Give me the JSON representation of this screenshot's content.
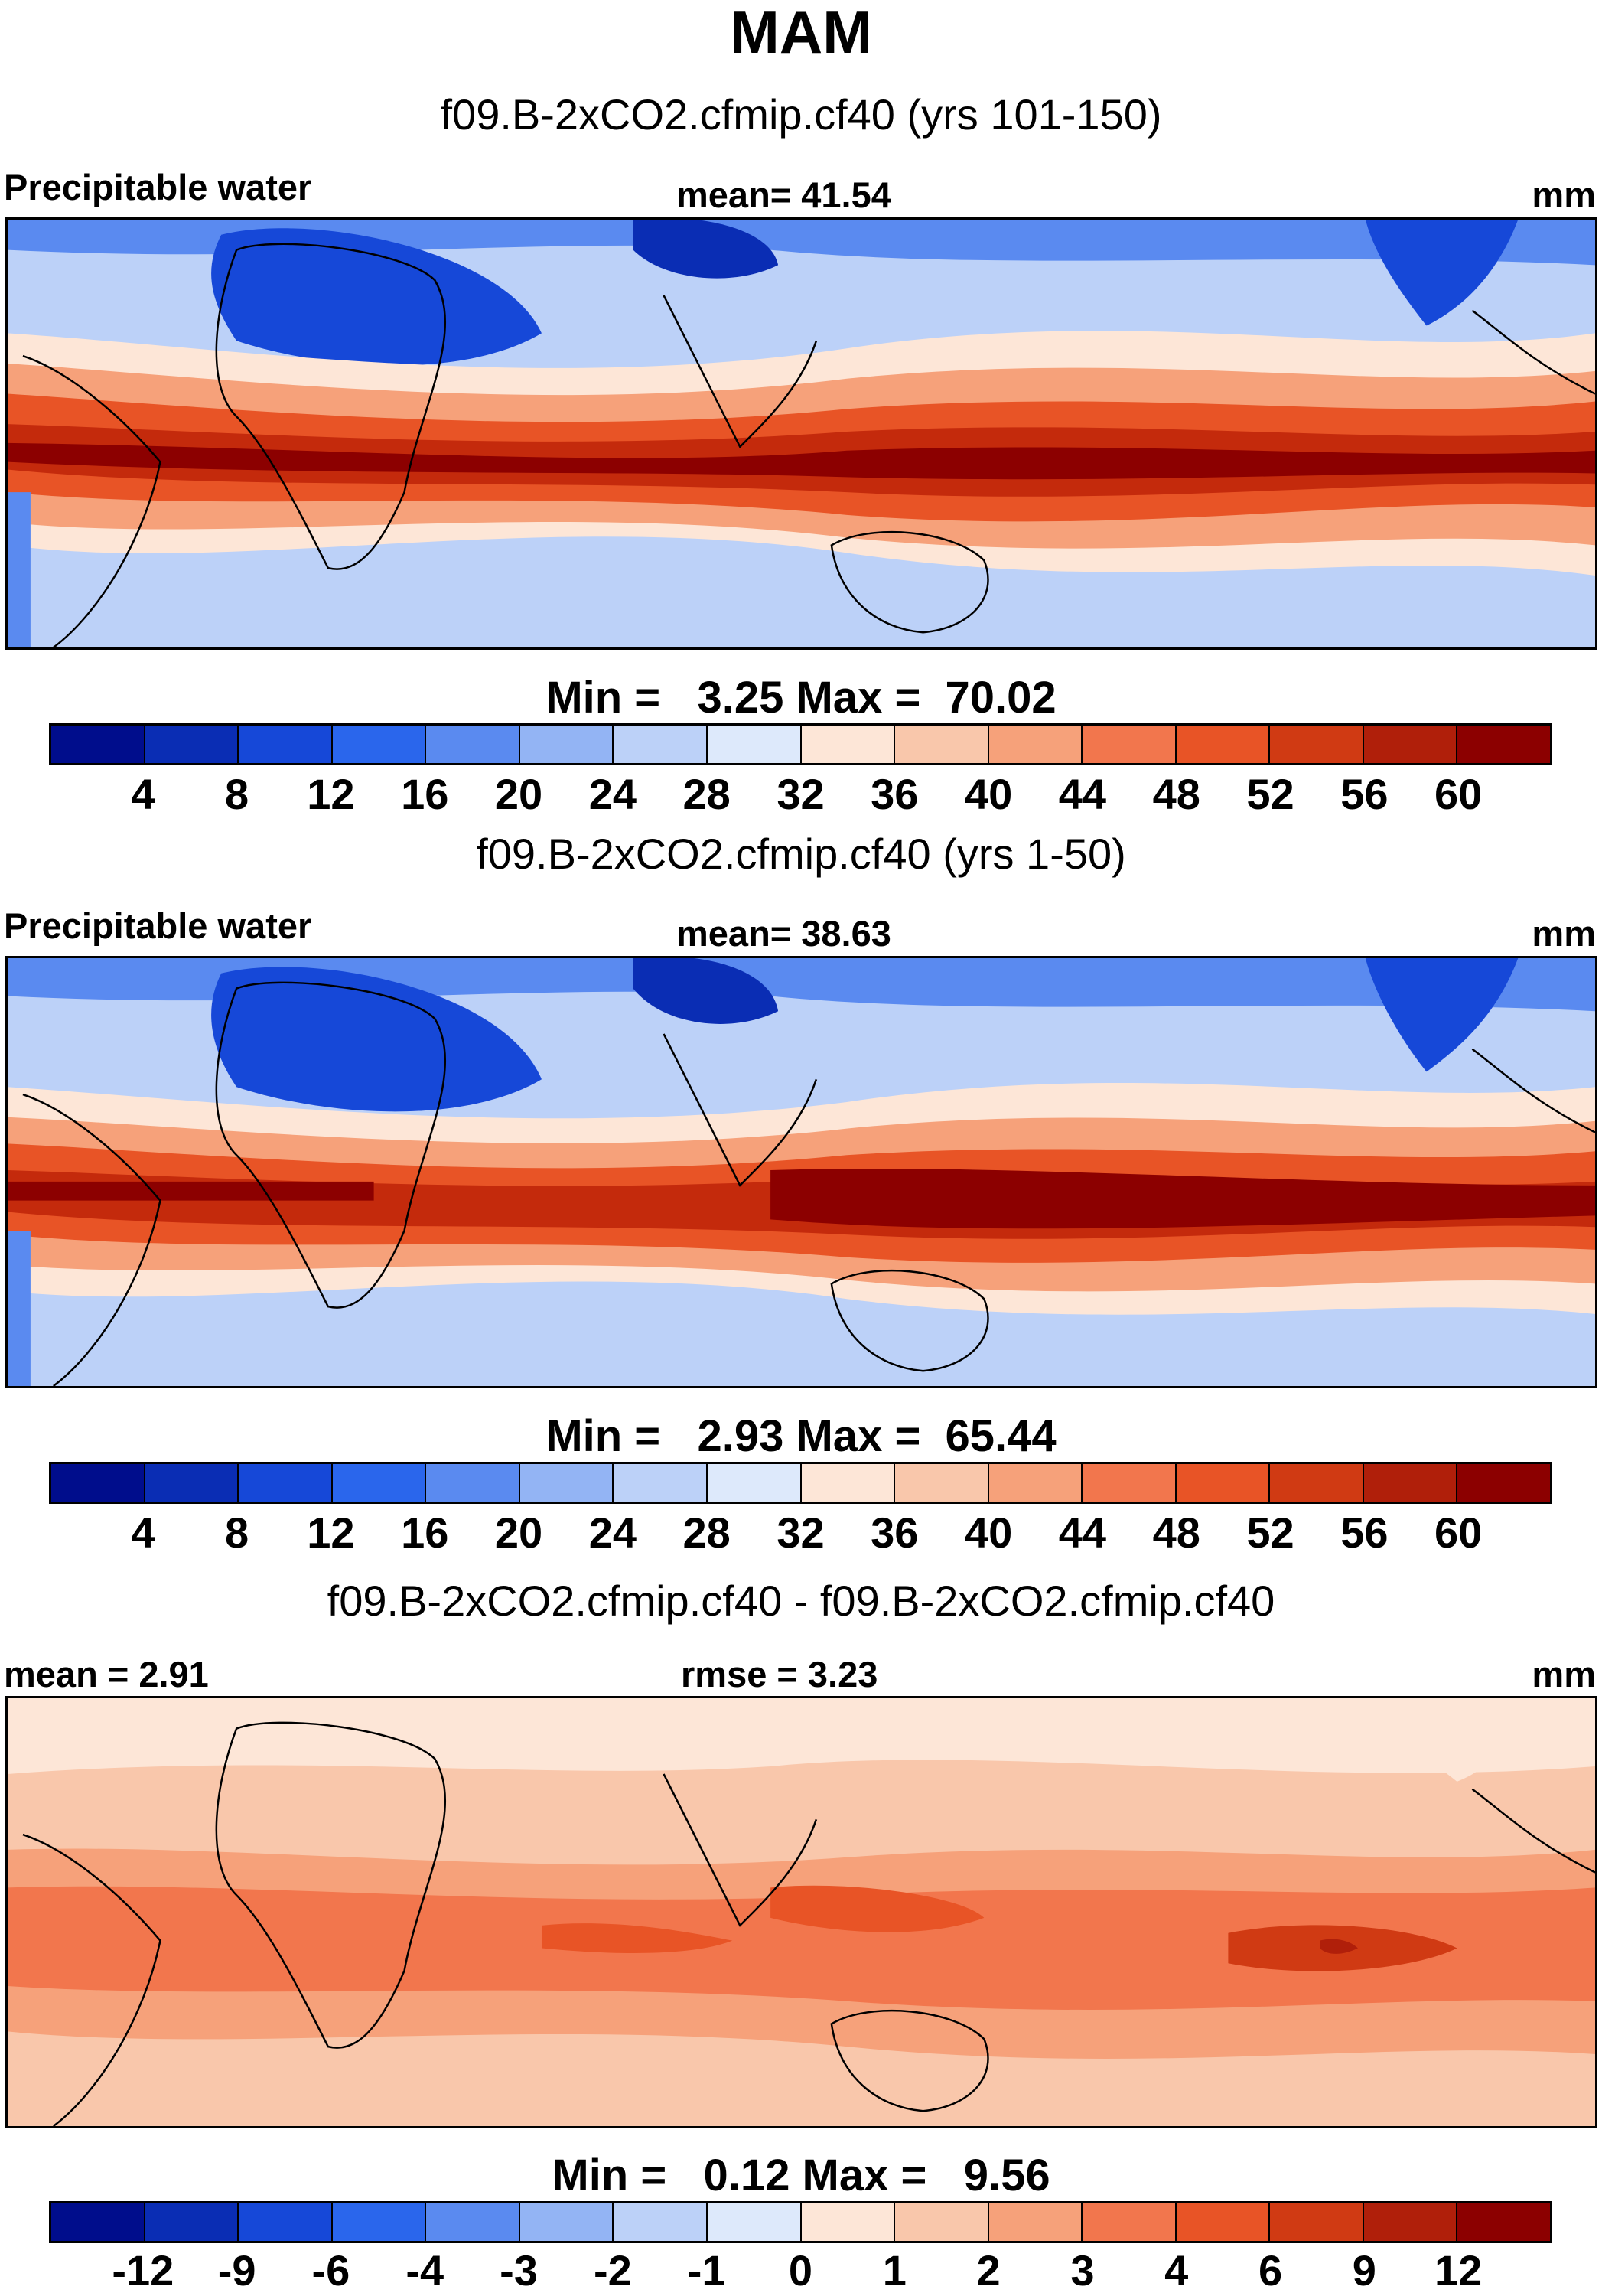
{
  "main_title": "MAM",
  "panels": [
    {
      "title": "f09.B-2xCO2.cfmip.cf40 (yrs 101-150)",
      "left_label": "Precipitable water",
      "center_label": "mean=  41.54",
      "right_label": "mm",
      "minmax": "Min =   3.25 Max =  70.02",
      "colorbar_labels": [
        "4",
        "8",
        "12",
        "16",
        "20",
        "24",
        "28",
        "32",
        "36",
        "40",
        "44",
        "48",
        "52",
        "56",
        "60"
      ]
    },
    {
      "title": "f09.B-2xCO2.cfmip.cf40 (yrs 1-50)",
      "left_label": "Precipitable water",
      "center_label": "mean=  38.63",
      "right_label": "mm",
      "minmax": "Min =   2.93 Max =  65.44",
      "colorbar_labels": [
        "4",
        "8",
        "12",
        "16",
        "20",
        "24",
        "28",
        "32",
        "36",
        "40",
        "44",
        "48",
        "52",
        "56",
        "60"
      ]
    },
    {
      "title": "f09.B-2xCO2.cfmip.cf40 - f09.B-2xCO2.cfmip.cf40",
      "left_label": "mean =   2.91",
      "center_label": "rmse =   3.23",
      "right_label": "mm",
      "minmax": "Min =   0.12 Max =   9.56",
      "colorbar_labels": [
        "-12",
        "-9",
        "-6",
        "-4",
        "-3",
        "-2",
        "-1",
        "0",
        "1",
        "2",
        "3",
        "4",
        "6",
        "9",
        "12"
      ]
    }
  ],
  "colorbar_colors": [
    "#000d8c",
    "#0a2db4",
    "#1648d8",
    "#2a66ec",
    "#5a8af0",
    "#93b4f4",
    "#bcd1f8",
    "#dde9fb",
    "#fde6d7",
    "#f9c7ab",
    "#f6a17a",
    "#f2764d",
    "#e85426",
    "#d03a13",
    "#b01f0a",
    "#8c0000"
  ],
  "map_colors": {
    "deep_red": "#8c0000",
    "red": "#c42a0c",
    "orange_red": "#e85426",
    "orange": "#f6a17a",
    "peach": "#f9c7ab",
    "cream": "#fde6d7",
    "pale_blue": "#dde9fb",
    "light_blue": "#bcd1f8",
    "blue": "#5a8af0",
    "dark_blue": "#1648d8"
  }
}
